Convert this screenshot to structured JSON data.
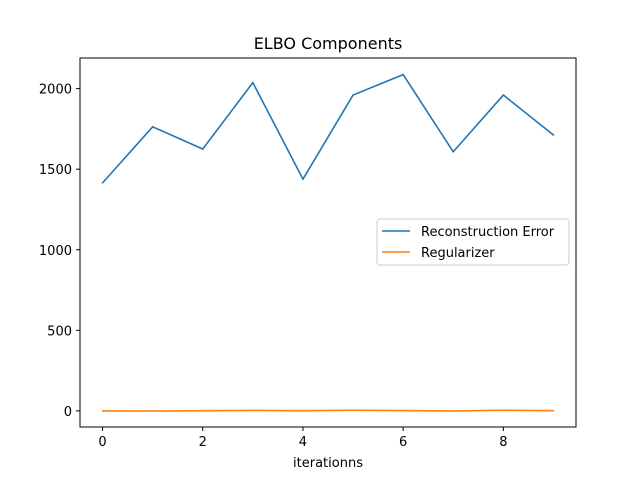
{
  "chart_data": {
    "type": "line",
    "title": "ELBO Components",
    "xlabel": "iterationns",
    "ylabel": "",
    "x": [
      0,
      1,
      2,
      3,
      4,
      5,
      6,
      7,
      8,
      9
    ],
    "xlim": [
      -0.45,
      9.45
    ],
    "ylim": [
      -100,
      2190
    ],
    "xticks": [
      0,
      2,
      4,
      6,
      8
    ],
    "yticks": [
      0,
      500,
      1000,
      1500,
      2000
    ],
    "grid": false,
    "legend_position": "center-right",
    "series": [
      {
        "name": "Reconstruction Error",
        "color": "#1f77b4",
        "values": [
          1415,
          1763,
          1625,
          2037,
          1438,
          1960,
          2087,
          1608,
          1960,
          1712
        ]
      },
      {
        "name": "Regularizer",
        "color": "#ff7f0e",
        "values": [
          0,
          -1,
          1,
          3,
          1,
          4,
          2,
          0,
          4,
          1
        ]
      }
    ]
  }
}
